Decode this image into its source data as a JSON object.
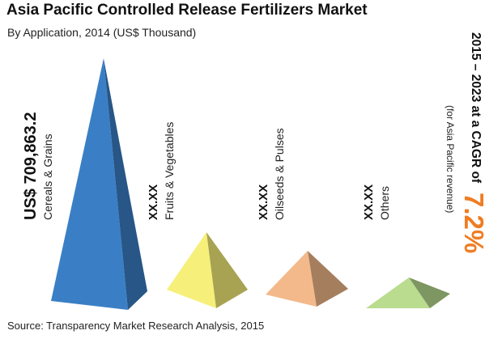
{
  "chart_data": {
    "type": "bar",
    "title": "Asia Pacific Controlled Release Fertilizers Market",
    "subtitle": "By Application, 2014 (US$ Thousand)",
    "categories": [
      "Cereals & Grains",
      "Fruits & Vegetables",
      "Oilseeds & Pulses",
      "Others"
    ],
    "values": [
      709863.2,
      null,
      null,
      null
    ],
    "value_labels": [
      "US$ 709,863.2",
      "XX.XX",
      "XX.XX",
      "XX.XX"
    ],
    "cagr": {
      "prefix": "2015 – 2023 at a CAGR of",
      "value": "7.2%",
      "note": "(for Asia Pacific revenue)"
    },
    "colors": [
      "#3a7fc6",
      "#f6f07a",
      "#f3b98a",
      "#b9dc8e"
    ],
    "source": "Source: Transparency Market Research Analysis, 2015"
  }
}
